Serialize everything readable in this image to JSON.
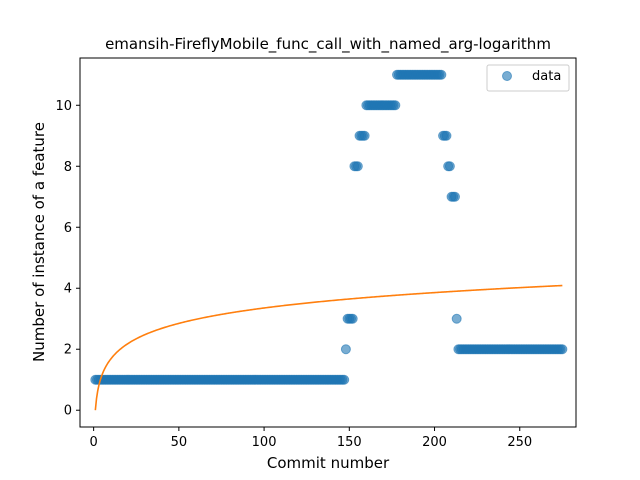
{
  "chart_data": {
    "type": "scatter",
    "title": "emansih-FireflyMobile_func_call_with_named_arg-logarithm",
    "xlabel": "Commit number",
    "ylabel": "Number of instance of a feature",
    "xlim": [
      -8,
      283
    ],
    "ylim": [
      -0.55,
      11.55
    ],
    "xticks": [
      0,
      50,
      100,
      150,
      200,
      250
    ],
    "yticks": [
      0,
      2,
      4,
      6,
      8,
      10
    ],
    "legend": {
      "position": "top-right",
      "entries": [
        "data"
      ]
    },
    "colors": {
      "points": "#1f77b4",
      "fit": "#ff7f0e"
    },
    "segments": [
      {
        "x_start": 1,
        "x_end": 147,
        "y": 1
      },
      {
        "x_start": 148,
        "x_end": 148,
        "y": 2
      },
      {
        "x_start": 149,
        "x_end": 152,
        "y": 3
      },
      {
        "x_start": 153,
        "x_end": 155,
        "y": 8
      },
      {
        "x_start": 156,
        "x_end": 159,
        "y": 9
      },
      {
        "x_start": 160,
        "x_end": 177,
        "y": 10
      },
      {
        "x_start": 178,
        "x_end": 204,
        "y": 11
      },
      {
        "x_start": 205,
        "x_end": 207,
        "y": 9
      },
      {
        "x_start": 208,
        "x_end": 209,
        "y": 8
      },
      {
        "x_start": 210,
        "x_end": 212,
        "y": 7
      },
      {
        "x_start": 213,
        "x_end": 213,
        "y": 3
      },
      {
        "x_start": 214,
        "x_end": 275,
        "y": 2
      }
    ],
    "fit": {
      "type": "logarithmic",
      "a": 0.728,
      "b": 0.0,
      "x_start": 1,
      "x_end": 275
    }
  }
}
